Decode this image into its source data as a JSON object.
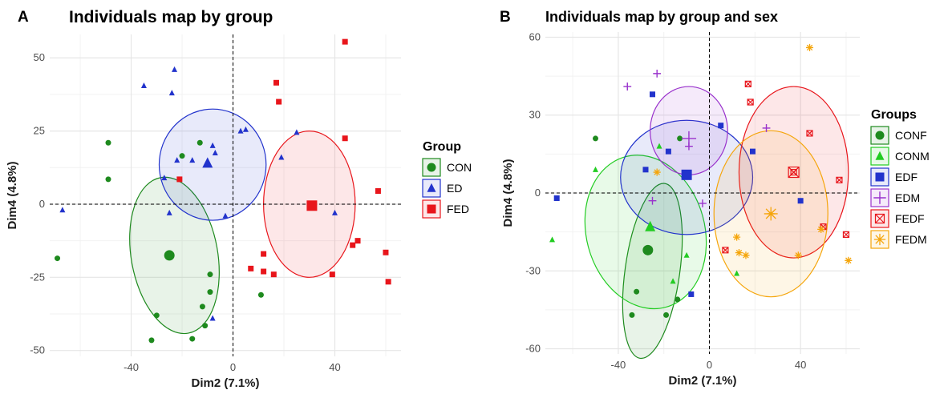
{
  "chart_data": [
    {
      "panel": "A",
      "type": "scatter",
      "title": "Individuals map by group",
      "xlabel": "Dim2 (7.1%)",
      "ylabel": "Dim4 (4.8%)",
      "xlim": [
        -72,
        66
      ],
      "ylim": [
        -52,
        58
      ],
      "xticks": [
        -40,
        0,
        40
      ],
      "yticks": [
        -50,
        -25,
        0,
        25,
        50
      ],
      "grid": true,
      "legend_title": "Group",
      "legend_position": "right",
      "series": [
        {
          "name": "CON",
          "color": "#1e8a1e",
          "marker": "circle",
          "points": [
            [
              -69,
              -18.5
            ],
            [
              -49,
              21
            ],
            [
              -49,
              8.5
            ],
            [
              -25,
              -17.5
            ],
            [
              -20,
              16.5
            ],
            [
              -13,
              21
            ],
            [
              -9,
              -24
            ],
            [
              -9,
              -30
            ],
            [
              -12,
              -35
            ],
            [
              -11,
              -41.5
            ],
            [
              -16,
              -46
            ],
            [
              -30,
              -38
            ],
            [
              -32,
              -46.5
            ],
            [
              11,
              -31
            ]
          ],
          "centroid": [
            -25,
            -17.5
          ],
          "ellipse": {
            "cx": -23,
            "cy": -17.5,
            "rx": 17,
            "ry": 27,
            "angle": -10
          }
        },
        {
          "name": "ED",
          "color": "#2233cc",
          "marker": "triangle",
          "points": [
            [
              -67,
              -2
            ],
            [
              -35,
              40.5
            ],
            [
              -23,
              46
            ],
            [
              -24,
              38
            ],
            [
              -27,
              9
            ],
            [
              -22,
              15
            ],
            [
              -25,
              -3
            ],
            [
              -16,
              15
            ],
            [
              -8,
              20
            ],
            [
              -7,
              17.5
            ],
            [
              3,
              25
            ],
            [
              5,
              25.5
            ],
            [
              25,
              24.5
            ],
            [
              19,
              16
            ],
            [
              -3,
              -4
            ],
            [
              -8,
              -39
            ],
            [
              40,
              -3
            ]
          ],
          "centroid": [
            -10,
            14
          ],
          "ellipse": {
            "cx": -8,
            "cy": 13.5,
            "rx": 21,
            "ry": 19,
            "angle": 0
          }
        },
        {
          "name": "FED",
          "color": "#e8151b",
          "marker": "square",
          "points": [
            [
              44,
              55.5
            ],
            [
              17,
              41.5
            ],
            [
              18,
              35
            ],
            [
              44,
              22.5
            ],
            [
              -21,
              8.5
            ],
            [
              57,
              4.5
            ],
            [
              49,
              -12.5
            ],
            [
              47,
              -14
            ],
            [
              60,
              -16.5
            ],
            [
              61,
              -26.5
            ],
            [
              39,
              -24
            ],
            [
              12,
              -17
            ],
            [
              7,
              -22
            ],
            [
              12,
              -23
            ],
            [
              16,
              -24
            ]
          ],
          "centroid": [
            31,
            -0.5
          ],
          "ellipse": {
            "cx": 30,
            "cy": 0,
            "rx": 18,
            "ry": 25,
            "angle": 0
          }
        }
      ]
    },
    {
      "panel": "B",
      "type": "scatter",
      "title": "Individuals map by group and sex",
      "xlabel": "Dim2 (7.1%)",
      "ylabel": "Dim4 (4.8%)",
      "xlim": [
        -72,
        66
      ],
      "ylim": [
        -62,
        62
      ],
      "xticks": [
        -40,
        0,
        40
      ],
      "yticks": [
        -60,
        -30,
        0,
        30,
        60
      ],
      "grid": true,
      "legend_title": "Groups",
      "legend_position": "right",
      "series": [
        {
          "name": "CONF",
          "color": "#1e8a1e",
          "marker": "circle",
          "points": [
            [
              -50,
              21
            ],
            [
              -27,
              -22
            ],
            [
              -32,
              -38
            ],
            [
              -34,
              -47
            ],
            [
              -19,
              -47
            ],
            [
              -14,
              -41
            ],
            [
              -13,
              21
            ]
          ],
          "centroid": [
            -27,
            -22
          ],
          "ellipse": {
            "cx": -25,
            "cy": -30,
            "rx": 12,
            "ry": 34,
            "angle": 8
          }
        },
        {
          "name": "CONM",
          "color": "#22cc22",
          "marker": "triangle",
          "points": [
            [
              -69,
              -18
            ],
            [
              -50,
              9
            ],
            [
              -22,
              18
            ],
            [
              -16,
              -34
            ],
            [
              -10,
              -24
            ],
            [
              12,
              -31
            ]
          ],
          "centroid": [
            -26,
            -13
          ],
          "ellipse": {
            "cx": -28,
            "cy": -15,
            "rx": 26,
            "ry": 30,
            "angle": -15
          }
        },
        {
          "name": "EDF",
          "color": "#2233cc",
          "marker": "square",
          "points": [
            [
              -67,
              -2
            ],
            [
              -25,
              38
            ],
            [
              -28,
              9
            ],
            [
              -18,
              16
            ],
            [
              5,
              26
            ],
            [
              19,
              16
            ],
            [
              40,
              -3
            ],
            [
              -8,
              -39
            ],
            [
              -10,
              7
            ]
          ],
          "centroid": [
            -10,
            7
          ],
          "ellipse": {
            "cx": -10,
            "cy": 6,
            "rx": 29,
            "ry": 22,
            "angle": 0
          }
        },
        {
          "name": "EDM",
          "color": "#9932cc",
          "marker": "plus",
          "points": [
            [
              -36,
              41
            ],
            [
              -23,
              46
            ],
            [
              -25,
              -3
            ],
            [
              -9,
              18
            ],
            [
              25,
              25
            ],
            [
              -3,
              -4
            ]
          ],
          "centroid": [
            -9,
            21
          ],
          "ellipse": {
            "cx": -9,
            "cy": 24,
            "rx": 17,
            "ry": 17,
            "angle": 0
          }
        },
        {
          "name": "FEDF",
          "color": "#e8151b",
          "marker": "boxcross",
          "points": [
            [
              17,
              42
            ],
            [
              18,
              35
            ],
            [
              44,
              23
            ],
            [
              57,
              5
            ],
            [
              60,
              -16
            ],
            [
              50,
              -13
            ],
            [
              7,
              -22
            ],
            [
              37,
              8
            ]
          ],
          "centroid": [
            37,
            8
          ],
          "ellipse": {
            "cx": 37,
            "cy": 8,
            "rx": 24,
            "ry": 33,
            "angle": 0
          }
        },
        {
          "name": "FEDM",
          "color": "#f5a50a",
          "marker": "star",
          "points": [
            [
              44,
              56
            ],
            [
              -23,
              8
            ],
            [
              12,
              -17
            ],
            [
              13,
              -23
            ],
            [
              16,
              -24
            ],
            [
              39,
              -24
            ],
            [
              49,
              -14
            ],
            [
              61,
              -26
            ],
            [
              27,
              -8
            ]
          ],
          "centroid": [
            27,
            -8
          ],
          "ellipse": {
            "cx": 27,
            "cy": -8,
            "rx": 25,
            "ry": 32,
            "angle": 0
          }
        }
      ]
    }
  ]
}
